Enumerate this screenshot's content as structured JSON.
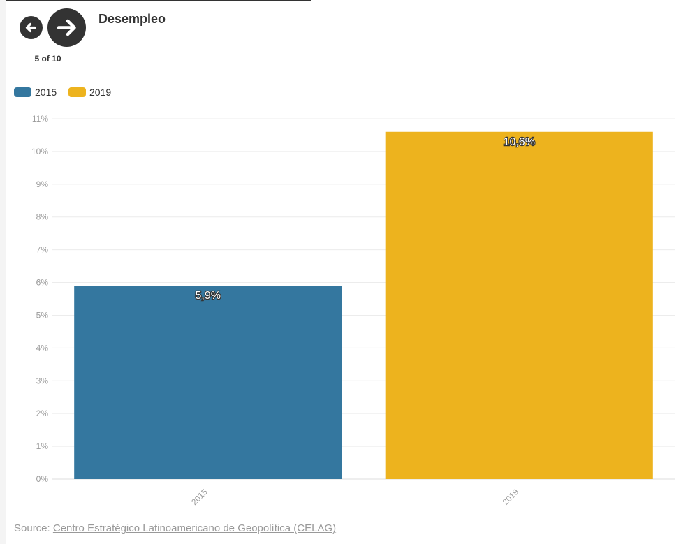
{
  "header": {
    "title": "Desempleo",
    "counter": "5 of 10"
  },
  "nav": {
    "prev_icon": "arrow-left-icon",
    "next_icon": "arrow-right-icon"
  },
  "legend": [
    {
      "label": "2015",
      "color": "#34779f"
    },
    {
      "label": "2019",
      "color": "#edb31e"
    }
  ],
  "chart_data": {
    "type": "bar",
    "categories": [
      "2015",
      "2019"
    ],
    "values": [
      5.9,
      10.6
    ],
    "data_labels": [
      "5,9%",
      "10,6%"
    ],
    "colors": [
      "#34779f",
      "#edb31e"
    ],
    "title": "Desempleo",
    "xlabel": "",
    "ylabel": "",
    "ylim": [
      0,
      11
    ],
    "y_ticks": [
      "0%",
      "1%",
      "2%",
      "3%",
      "4%",
      "5%",
      "6%",
      "7%",
      "8%",
      "9%",
      "10%",
      "11%"
    ],
    "grid": true,
    "legend_position": "top-left"
  },
  "footer": {
    "source_prefix": "Source: ",
    "source_link": "Centro Estratégico Latinoamericano de Geopolítica (CELAG)"
  }
}
